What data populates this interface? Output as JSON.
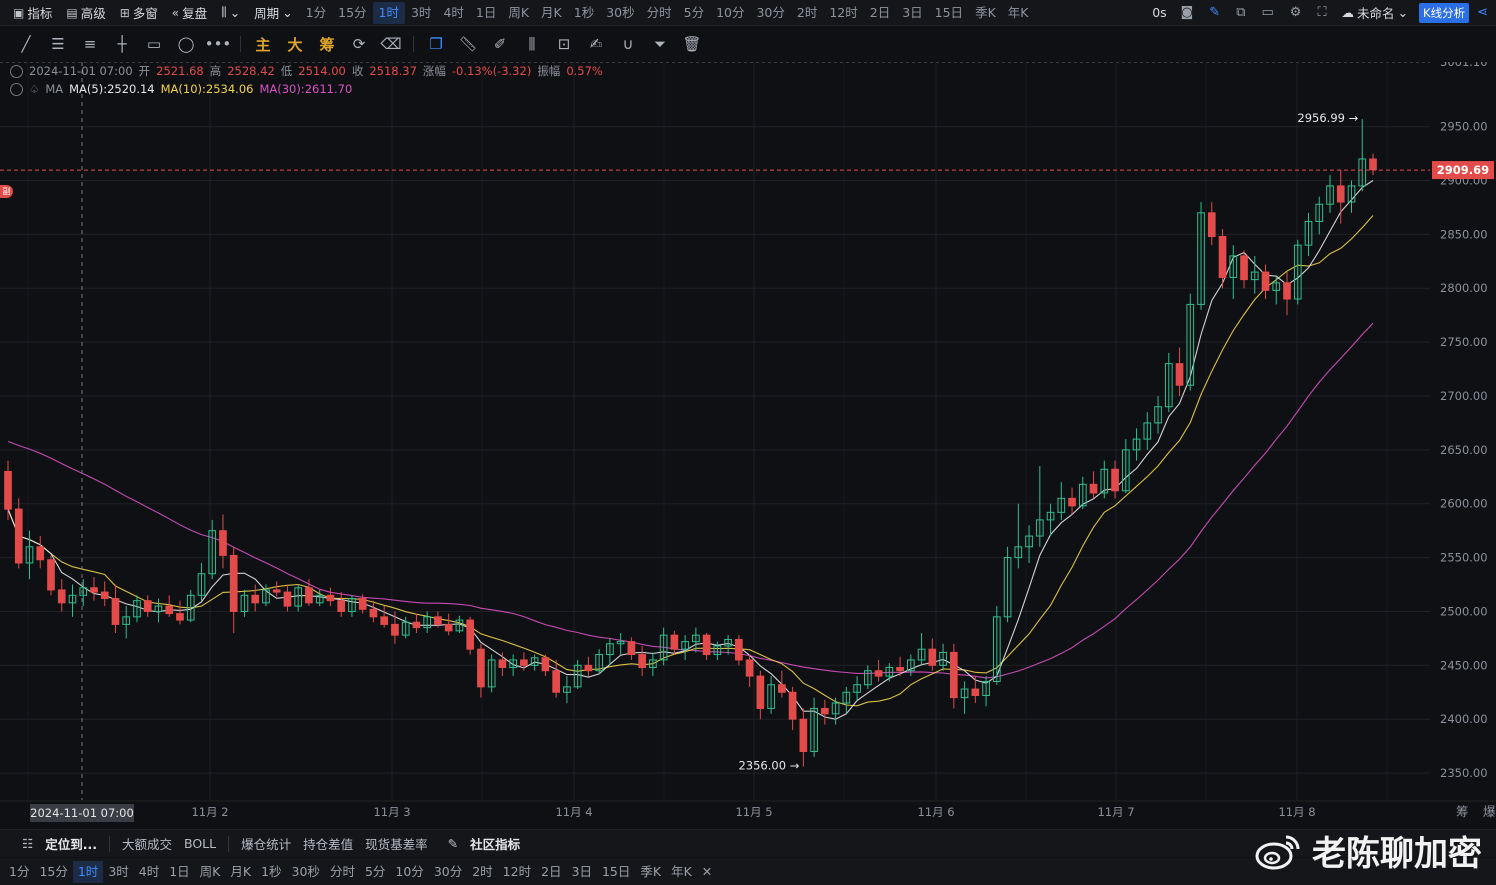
{
  "topbar": {
    "indicators": "指标",
    "advanced": "高级",
    "multi_window": "多窗",
    "replay": "复盘",
    "period": "周期",
    "timeframes": [
      "1分",
      "15分",
      "1时",
      "3时",
      "4时",
      "1日",
      "周K",
      "月K",
      "1秒",
      "30秒",
      "分时",
      "5分",
      "10分",
      "30分",
      "2时",
      "12时",
      "2日",
      "3日",
      "15日",
      "季K",
      "年K"
    ],
    "active_timeframe": "1时",
    "latency": "0s",
    "layout_name": "未命名",
    "kline_analysis": "K线分析"
  },
  "drawbar": {
    "cn_tools": [
      "主",
      "大",
      "筹"
    ]
  },
  "info": {
    "datetime": "2024-11-01 07:00",
    "open_label": "开",
    "open": "2521.68",
    "high_label": "高",
    "high": "2528.42",
    "low_label": "低",
    "low": "2514.00",
    "close_label": "收",
    "close": "2518.37",
    "change_label": "涨幅",
    "change": "-0.13%(-3.32)",
    "amplitude_label": "振幅",
    "amplitude": "0.57%",
    "ma_label": "MA",
    "ma5": "MA(5):2520.14",
    "ma10": "MA(10):2534.06",
    "ma30": "MA(30):2611.70"
  },
  "side_badge": "副",
  "colors": {
    "up": "#2fbf8f",
    "down": "#e34b4b",
    "ma5": "#e8e8e8",
    "ma10": "#f0d24a",
    "ma30": "#d951c4",
    "accent": "#2b6fe6"
  },
  "chart_data": {
    "type": "candlestick",
    "y_ticks": [
      2950,
      2900,
      2850,
      2800,
      2750,
      2700,
      2650,
      2600,
      2550,
      2500,
      2450,
      2400,
      2350
    ],
    "y_tick_labels": [
      "2950.00",
      "2900.00",
      "2850.00",
      "2800.00",
      "2750.00",
      "2700.00",
      "2650.00",
      "2600.00",
      "2550.00",
      "2500.00",
      "2450.00",
      "2400.00",
      "2350.00"
    ],
    "top_partial_label": "3001.10",
    "ylim": [
      2325,
      3010
    ],
    "x_labels": [
      "11月 2",
      "11月 3",
      "11月 4",
      "11月 5",
      "11月 6",
      "11月 7",
      "11月 8"
    ],
    "crosshair_label": "2024-11-01 07:00",
    "current_price": "2909.69",
    "high_marker": "2956.99",
    "low_marker": "2356.00",
    "ohlc": [
      [
        2630,
        2640,
        2585,
        2595
      ],
      [
        2595,
        2605,
        2540,
        2545
      ],
      [
        2545,
        2575,
        2530,
        2560
      ],
      [
        2560,
        2570,
        2540,
        2548
      ],
      [
        2548,
        2552,
        2515,
        2520
      ],
      [
        2520,
        2530,
        2500,
        2508
      ],
      [
        2508,
        2525,
        2495,
        2515
      ],
      [
        2515,
        2530,
        2505,
        2522
      ],
      [
        2522,
        2532,
        2510,
        2518
      ],
      [
        2518,
        2528,
        2505,
        2512
      ],
      [
        2512,
        2525,
        2480,
        2488
      ],
      [
        2488,
        2505,
        2475,
        2495
      ],
      [
        2495,
        2515,
        2490,
        2510
      ],
      [
        2510,
        2515,
        2495,
        2500
      ],
      [
        2500,
        2512,
        2490,
        2505
      ],
      [
        2505,
        2515,
        2495,
        2498
      ],
      [
        2498,
        2510,
        2488,
        2492
      ],
      [
        2492,
        2520,
        2490,
        2515
      ],
      [
        2515,
        2545,
        2510,
        2535
      ],
      [
        2535,
        2585,
        2530,
        2575
      ],
      [
        2575,
        2590,
        2540,
        2552
      ],
      [
        2552,
        2560,
        2480,
        2500
      ],
      [
        2500,
        2520,
        2495,
        2515
      ],
      [
        2515,
        2525,
        2500,
        2508
      ],
      [
        2508,
        2525,
        2505,
        2520
      ],
      [
        2520,
        2528,
        2514,
        2518
      ],
      [
        2518,
        2525,
        2500,
        2505
      ],
      [
        2505,
        2525,
        2500,
        2522
      ],
      [
        2522,
        2530,
        2505,
        2508
      ],
      [
        2508,
        2520,
        2505,
        2515
      ],
      [
        2515,
        2522,
        2505,
        2510
      ],
      [
        2510,
        2518,
        2495,
        2500
      ],
      [
        2500,
        2515,
        2495,
        2512
      ],
      [
        2512,
        2516,
        2498,
        2502
      ],
      [
        2502,
        2510,
        2490,
        2495
      ],
      [
        2495,
        2505,
        2485,
        2488
      ],
      [
        2488,
        2500,
        2470,
        2478
      ],
      [
        2478,
        2495,
        2475,
        2490
      ],
      [
        2490,
        2498,
        2480,
        2485
      ],
      [
        2485,
        2500,
        2480,
        2495
      ],
      [
        2495,
        2500,
        2485,
        2488
      ],
      [
        2488,
        2498,
        2478,
        2482
      ],
      [
        2482,
        2496,
        2480,
        2492
      ],
      [
        2492,
        2495,
        2460,
        2465
      ],
      [
        2465,
        2470,
        2420,
        2430
      ],
      [
        2430,
        2460,
        2425,
        2455
      ],
      [
        2455,
        2462,
        2440,
        2448
      ],
      [
        2448,
        2460,
        2440,
        2455
      ],
      [
        2455,
        2462,
        2445,
        2450
      ],
      [
        2450,
        2460,
        2445,
        2457
      ],
      [
        2457,
        2460,
        2440,
        2445
      ],
      [
        2445,
        2455,
        2420,
        2425
      ],
      [
        2425,
        2440,
        2415,
        2430
      ],
      [
        2430,
        2455,
        2428,
        2450
      ],
      [
        2450,
        2458,
        2440,
        2445
      ],
      [
        2445,
        2465,
        2442,
        2460
      ],
      [
        2460,
        2475,
        2450,
        2470
      ],
      [
        2470,
        2480,
        2460,
        2472
      ],
      [
        2472,
        2476,
        2455,
        2460
      ],
      [
        2460,
        2468,
        2440,
        2448
      ],
      [
        2448,
        2462,
        2440,
        2455
      ],
      [
        2455,
        2485,
        2450,
        2478
      ],
      [
        2478,
        2482,
        2460,
        2465
      ],
      [
        2465,
        2478,
        2455,
        2472
      ],
      [
        2472,
        2485,
        2462,
        2478
      ],
      [
        2478,
        2480,
        2455,
        2460
      ],
      [
        2460,
        2472,
        2455,
        2468
      ],
      [
        2468,
        2478,
        2460,
        2474
      ],
      [
        2474,
        2478,
        2450,
        2455
      ],
      [
        2455,
        2460,
        2430,
        2440
      ],
      [
        2440,
        2445,
        2400,
        2410
      ],
      [
        2410,
        2440,
        2405,
        2432
      ],
      [
        2432,
        2445,
        2420,
        2425
      ],
      [
        2425,
        2430,
        2390,
        2400
      ],
      [
        2400,
        2410,
        2356,
        2370
      ],
      [
        2370,
        2420,
        2365,
        2410
      ],
      [
        2410,
        2418,
        2395,
        2405
      ],
      [
        2405,
        2420,
        2395,
        2415
      ],
      [
        2415,
        2430,
        2405,
        2425
      ],
      [
        2425,
        2440,
        2418,
        2432
      ],
      [
        2432,
        2450,
        2428,
        2445
      ],
      [
        2445,
        2455,
        2435,
        2440
      ],
      [
        2440,
        2452,
        2435,
        2448
      ],
      [
        2448,
        2458,
        2440,
        2445
      ],
      [
        2445,
        2460,
        2440,
        2455
      ],
      [
        2455,
        2480,
        2450,
        2465
      ],
      [
        2465,
        2475,
        2445,
        2450
      ],
      [
        2450,
        2470,
        2445,
        2462
      ],
      [
        2462,
        2470,
        2410,
        2420
      ],
      [
        2420,
        2435,
        2405,
        2428
      ],
      [
        2428,
        2440,
        2415,
        2422
      ],
      [
        2422,
        2440,
        2412,
        2435
      ],
      [
        2435,
        2505,
        2432,
        2495
      ],
      [
        2495,
        2560,
        2490,
        2550
      ],
      [
        2550,
        2600,
        2540,
        2560
      ],
      [
        2560,
        2580,
        2545,
        2570
      ],
      [
        2570,
        2635,
        2560,
        2585
      ],
      [
        2585,
        2600,
        2570,
        2592
      ],
      [
        2592,
        2620,
        2585,
        2605
      ],
      [
        2605,
        2615,
        2590,
        2598
      ],
      [
        2598,
        2625,
        2595,
        2618
      ],
      [
        2618,
        2630,
        2605,
        2610
      ],
      [
        2610,
        2640,
        2605,
        2632
      ],
      [
        2632,
        2640,
        2605,
        2612
      ],
      [
        2612,
        2660,
        2610,
        2650
      ],
      [
        2650,
        2670,
        2640,
        2660
      ],
      [
        2660,
        2685,
        2650,
        2675
      ],
      [
        2675,
        2700,
        2665,
        2690
      ],
      [
        2690,
        2740,
        2685,
        2730
      ],
      [
        2730,
        2745,
        2700,
        2710
      ],
      [
        2710,
        2795,
        2705,
        2785
      ],
      [
        2785,
        2880,
        2780,
        2870
      ],
      [
        2870,
        2880,
        2840,
        2848
      ],
      [
        2848,
        2855,
        2800,
        2810
      ],
      [
        2810,
        2840,
        2790,
        2830
      ],
      [
        2830,
        2835,
        2800,
        2808
      ],
      [
        2808,
        2830,
        2795,
        2815
      ],
      [
        2815,
        2822,
        2790,
        2798
      ],
      [
        2798,
        2812,
        2785,
        2805
      ],
      [
        2805,
        2815,
        2775,
        2790
      ],
      [
        2790,
        2845,
        2785,
        2840
      ],
      [
        2840,
        2870,
        2830,
        2862
      ],
      [
        2862,
        2885,
        2850,
        2878
      ],
      [
        2878,
        2905,
        2870,
        2895
      ],
      [
        2895,
        2910,
        2860,
        2880
      ],
      [
        2880,
        2900,
        2870,
        2895
      ],
      [
        2895,
        2957,
        2890,
        2920
      ],
      [
        2920,
        2925,
        2905,
        2910
      ]
    ]
  },
  "bottom": {
    "locate": "定位到...",
    "tools": [
      "大额成交",
      "BOLL",
      "爆仓统计",
      "持仓差值",
      "现货基差率"
    ],
    "community": "社区指标",
    "timeframes": [
      "1分",
      "15分",
      "1时",
      "3时",
      "4时",
      "1日",
      "周K",
      "月K",
      "1秒",
      "30秒",
      "分时",
      "5分",
      "10分",
      "30分",
      "2时",
      "12时",
      "2日",
      "3日",
      "15日",
      "季K",
      "年K"
    ],
    "active_timeframe": "1时",
    "right_labels": [
      "筹",
      "爆"
    ]
  },
  "watermark": "老陈聊加密"
}
